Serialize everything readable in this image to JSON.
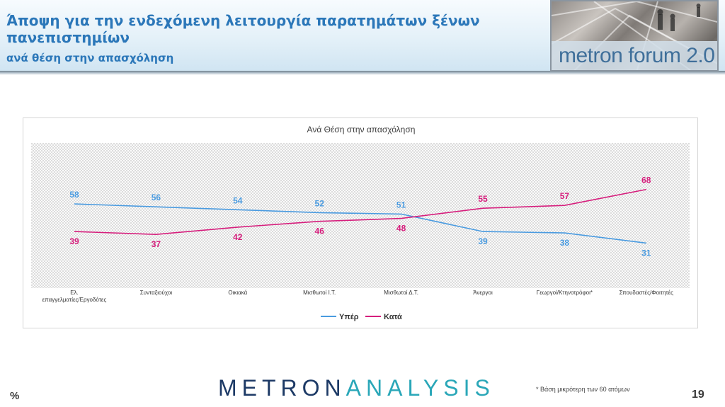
{
  "header": {
    "title": "Άποψη για την ενδεχόμενη λειτουργία παρατημάτων ξένων πανεπιστημίων",
    "subtitle": "ανά θέση στην απασχόληση",
    "logo_text": "metron forum 2.0"
  },
  "footer": {
    "brand_part1": "METRON",
    "brand_part2": "ANALYSIS",
    "footnote": "* Βάση μικρότερη των 60 ατόμων",
    "percent_symbol": "%",
    "page_number": "19"
  },
  "colors": {
    "title": "#2b77b9",
    "series_yper": "#4a9be0",
    "series_kata": "#d61f7d"
  },
  "chart_data": {
    "type": "line",
    "title": "Ανά Θέση στην απασχόληση",
    "categories": [
      "Ελ. επαγγελματίες/Εργοδότες",
      "Συνταξιούχοι",
      "Οικιακά",
      "Μισθωτοί Ι.Τ.",
      "Μισθωτοί Δ.Τ.",
      "Άνεργοι",
      "Γεωργοί/Κτηνοτρόφοι*",
      "Σπουδαστές/Φοιτητές"
    ],
    "series": [
      {
        "name": "Υπέρ",
        "values": [
          58,
          56,
          54,
          52,
          51,
          39,
          38,
          31
        ]
      },
      {
        "name": "Κατά",
        "values": [
          39,
          37,
          42,
          46,
          48,
          55,
          57,
          68
        ]
      }
    ],
    "ylim": [
      0,
      100
    ],
    "grid": "hatched",
    "legend": "bottom-center"
  }
}
